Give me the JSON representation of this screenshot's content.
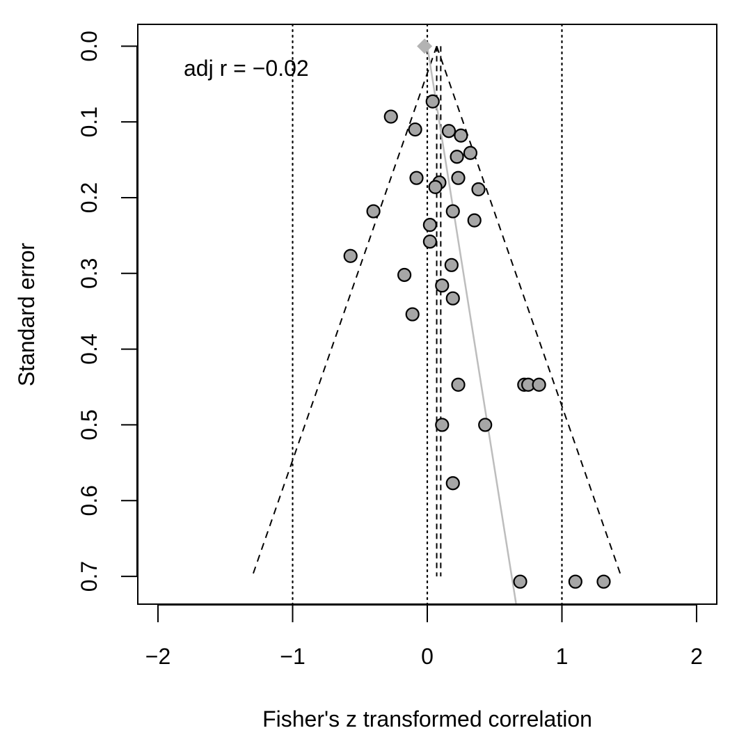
{
  "chart_data": {
    "type": "scatter",
    "title": "",
    "xlabel": "Fisher's z transformed correlation",
    "ylabel": "Standard error",
    "xlim": [
      -2.15,
      2.15
    ],
    "ylim": [
      0.7367,
      -0.0288
    ],
    "y_reversed": true,
    "grid": false,
    "legend": "none",
    "x_ticks": [
      {
        "value": -2,
        "label": "−2"
      },
      {
        "value": -1,
        "label": "−1"
      },
      {
        "value": 0,
        "label": "0"
      },
      {
        "value": 1,
        "label": "1"
      },
      {
        "value": 2,
        "label": "2"
      }
    ],
    "y_ticks": [
      {
        "value": 0.0,
        "label": "0.0"
      },
      {
        "value": 0.1,
        "label": "0.1"
      },
      {
        "value": 0.2,
        "label": "0.2"
      },
      {
        "value": 0.3,
        "label": "0.3"
      },
      {
        "value": 0.4,
        "label": "0.4"
      },
      {
        "value": 0.5,
        "label": "0.5"
      },
      {
        "value": 0.6,
        "label": "0.6"
      },
      {
        "value": 0.7,
        "label": "0.7"
      }
    ],
    "annotation": "adj r = −0.02",
    "colors": {
      "point_fill": "#a6a6a6",
      "point_stroke": "#000000",
      "regression_line": "#bdbdbd",
      "estimate_diamond": "#b3b3b3",
      "reference_lines": "#000000"
    },
    "points": [
      {
        "x": 0.04,
        "y": 0.073
      },
      {
        "x": -0.27,
        "y": 0.093
      },
      {
        "x": -0.09,
        "y": 0.11
      },
      {
        "x": 0.16,
        "y": 0.112
      },
      {
        "x": 0.25,
        "y": 0.118
      },
      {
        "x": 0.32,
        "y": 0.141
      },
      {
        "x": 0.22,
        "y": 0.146
      },
      {
        "x": -0.08,
        "y": 0.174
      },
      {
        "x": 0.23,
        "y": 0.174
      },
      {
        "x": 0.09,
        "y": 0.18
      },
      {
        "x": 0.06,
        "y": 0.186
      },
      {
        "x": 0.38,
        "y": 0.189
      },
      {
        "x": -0.4,
        "y": 0.218
      },
      {
        "x": 0.19,
        "y": 0.218
      },
      {
        "x": 0.35,
        "y": 0.23
      },
      {
        "x": 0.02,
        "y": 0.236
      },
      {
        "x": 0.02,
        "y": 0.258
      },
      {
        "x": -0.57,
        "y": 0.277
      },
      {
        "x": 0.18,
        "y": 0.289
      },
      {
        "x": -0.17,
        "y": 0.302
      },
      {
        "x": 0.11,
        "y": 0.316
      },
      {
        "x": 0.19,
        "y": 0.333
      },
      {
        "x": -0.11,
        "y": 0.354
      },
      {
        "x": 0.23,
        "y": 0.447
      },
      {
        "x": 0.72,
        "y": 0.447
      },
      {
        "x": 0.75,
        "y": 0.447
      },
      {
        "x": 0.83,
        "y": 0.447
      },
      {
        "x": 0.11,
        "y": 0.5
      },
      {
        "x": 0.43,
        "y": 0.5
      },
      {
        "x": 0.19,
        "y": 0.577
      },
      {
        "x": 0.69,
        "y": 0.707
      },
      {
        "x": 1.1,
        "y": 0.707
      },
      {
        "x": 1.31,
        "y": 0.707
      }
    ],
    "estimate": {
      "x": -0.02,
      "y": 0.0
    },
    "funnel": {
      "apex": {
        "x": 0.07,
        "y": 0.0
      },
      "bottom_left": {
        "x": -1.3,
        "y": 0.7
      },
      "bottom_right": {
        "x": 1.44,
        "y": 0.7
      }
    },
    "vertical_dashed": [
      {
        "x": 0.07,
        "y_from": 0.0,
        "y_to": 0.7
      },
      {
        "x": 0.1,
        "y_from": 0.0,
        "y_to": 0.7
      }
    ],
    "vertical_dotted": [
      -1,
      0,
      1
    ],
    "regression_line": {
      "x0": 0.0,
      "y0": 0.0,
      "x1": 0.66,
      "y1": 0.7367
    }
  }
}
